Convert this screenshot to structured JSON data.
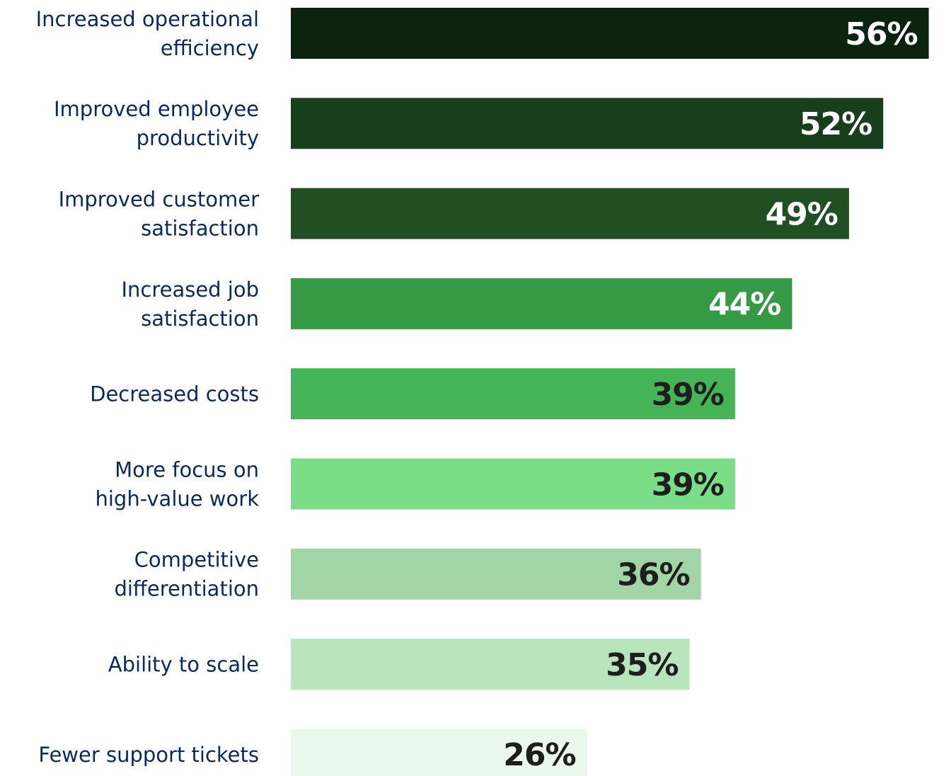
{
  "chart_data": {
    "type": "bar",
    "orientation": "horizontal",
    "categories": [
      "Increased operational efficiency",
      "Improved employee productivity",
      "Improved customer satisfaction",
      "Increased job satisfaction",
      "Decreased costs",
      "More focus on high-value work",
      "Competitive differentiation",
      "Ability to scale",
      "Fewer support tickets"
    ],
    "category_lines": [
      [
        "Increased operational",
        "efficiency"
      ],
      [
        "Improved employee",
        "productivity"
      ],
      [
        "Improved customer",
        "satisfaction"
      ],
      [
        "Increased job",
        "satisfaction"
      ],
      [
        "Decreased costs"
      ],
      [
        "More focus on",
        "high-value work"
      ],
      [
        "Competitive",
        "differentiation"
      ],
      [
        "Ability to scale"
      ],
      [
        "Fewer support tickets"
      ]
    ],
    "values": [
      56,
      52,
      49,
      44,
      39,
      39,
      36,
      35,
      26
    ],
    "value_labels": [
      "56%",
      "52%",
      "49%",
      "44%",
      "39%",
      "39%",
      "36%",
      "35%",
      "26%"
    ],
    "bar_colors": [
      "#0c2310",
      "#173f1b",
      "#214f24",
      "#369a45",
      "#45b457",
      "#7bdd88",
      "#a1d5a6",
      "#b9e5bd",
      "#eaf7eb"
    ],
    "value_label_colors": [
      "#ffffff",
      "#ffffff",
      "#ffffff",
      "#ffffff",
      "#1e1e1e",
      "#1e1e1e",
      "#1e1e1e",
      "#1e1e1e",
      "#1e1e1e"
    ],
    "category_label_color": "#0b2a5c",
    "grid": false,
    "legend": "none"
  }
}
